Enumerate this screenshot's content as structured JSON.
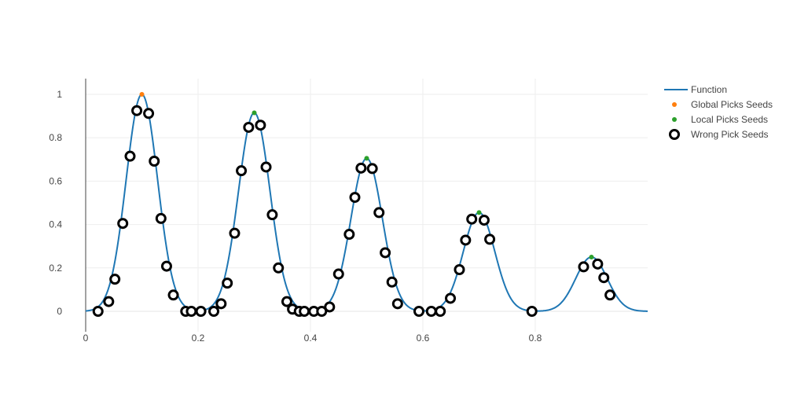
{
  "chart_data": {
    "type": "scatter",
    "title": "",
    "xlabel": "",
    "ylabel": "",
    "xlim": [
      -0.0,
      1.0
    ],
    "ylim": [
      -0.1,
      1.07
    ],
    "x_ticks": [
      {
        "value": 0,
        "label": "0"
      },
      {
        "value": 0.2,
        "label": "0.2"
      },
      {
        "value": 0.4,
        "label": "0.4"
      },
      {
        "value": 0.6,
        "label": "0.6"
      },
      {
        "value": 0.8,
        "label": "0.8"
      }
    ],
    "y_ticks": [
      {
        "value": 0,
        "label": "0"
      },
      {
        "value": 0.2,
        "label": "0.2"
      },
      {
        "value": 0.4,
        "label": "0.4"
      },
      {
        "value": 0.6,
        "label": "0.6"
      },
      {
        "value": 0.8,
        "label": "0.8"
      },
      {
        "value": 1,
        "label": "1"
      }
    ],
    "grid": true,
    "legend_position": "top-right",
    "function": {
      "name": "Function",
      "color": "#1f77b4",
      "peaks": [
        {
          "center": 0.1,
          "height": 1.0,
          "width": 0.028
        },
        {
          "center": 0.3,
          "height": 0.915,
          "width": 0.028
        },
        {
          "center": 0.5,
          "height": 0.705,
          "width": 0.028
        },
        {
          "center": 0.7,
          "height": 0.455,
          "width": 0.028
        },
        {
          "center": 0.9,
          "height": 0.25,
          "width": 0.028
        }
      ],
      "x_range": [
        0,
        1.0
      ]
    },
    "series": [
      {
        "name": "Global Picks Seeds",
        "color": "#ff7f0e",
        "marker": "small-filled",
        "points": [
          [
            0.1,
            1.0
          ]
        ]
      },
      {
        "name": "Local Picks Seeds",
        "color": "#2ca02c",
        "marker": "small-filled",
        "points": [
          [
            0.3,
            0.915
          ],
          [
            0.5,
            0.705
          ],
          [
            0.7,
            0.455
          ],
          [
            0.9,
            0.25
          ]
        ]
      },
      {
        "name": "Wrong Pick Seeds",
        "color": "#000000",
        "marker": "open-circle",
        "points": [
          [
            0.022,
            0.0
          ],
          [
            0.041,
            0.045
          ],
          [
            0.052,
            0.148
          ],
          [
            0.066,
            0.405
          ],
          [
            0.079,
            0.715
          ],
          [
            0.091,
            0.925
          ],
          [
            0.112,
            0.912
          ],
          [
            0.122,
            0.692
          ],
          [
            0.134,
            0.428
          ],
          [
            0.144,
            0.208
          ],
          [
            0.156,
            0.075
          ],
          [
            0.178,
            0.0
          ],
          [
            0.188,
            0.0
          ],
          [
            0.205,
            0.0
          ],
          [
            0.228,
            0.0
          ],
          [
            0.241,
            0.035
          ],
          [
            0.252,
            0.13
          ],
          [
            0.265,
            0.36
          ],
          [
            0.277,
            0.648
          ],
          [
            0.29,
            0.848
          ],
          [
            0.311,
            0.858
          ],
          [
            0.321,
            0.665
          ],
          [
            0.332,
            0.445
          ],
          [
            0.343,
            0.2
          ],
          [
            0.358,
            0.045
          ],
          [
            0.368,
            0.01
          ],
          [
            0.38,
            0.0
          ],
          [
            0.389,
            0.0
          ],
          [
            0.406,
            0.0
          ],
          [
            0.42,
            0.0
          ],
          [
            0.434,
            0.02
          ],
          [
            0.45,
            0.172
          ],
          [
            0.469,
            0.355
          ],
          [
            0.479,
            0.525
          ],
          [
            0.49,
            0.66
          ],
          [
            0.51,
            0.658
          ],
          [
            0.522,
            0.455
          ],
          [
            0.533,
            0.27
          ],
          [
            0.545,
            0.135
          ],
          [
            0.555,
            0.035
          ],
          [
            0.593,
            0.0
          ],
          [
            0.615,
            0.0
          ],
          [
            0.631,
            0.0
          ],
          [
            0.649,
            0.06
          ],
          [
            0.665,
            0.192
          ],
          [
            0.676,
            0.328
          ],
          [
            0.687,
            0.425
          ],
          [
            0.709,
            0.42
          ],
          [
            0.719,
            0.332
          ],
          [
            0.794,
            0.0
          ],
          [
            0.886,
            0.205
          ],
          [
            0.911,
            0.218
          ],
          [
            0.922,
            0.155
          ],
          [
            0.933,
            0.075
          ]
        ]
      }
    ]
  }
}
